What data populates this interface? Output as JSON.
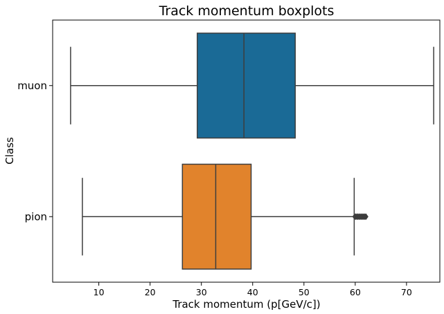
{
  "chart_data": {
    "type": "boxplot",
    "orientation": "horizontal",
    "title": "Track momentum boxplots",
    "xlabel": "Track momentum (p[GeV/c])",
    "ylabel": "Class",
    "xlim": [
      1,
      76.5
    ],
    "xticks": [
      10,
      20,
      30,
      40,
      50,
      60,
      70
    ],
    "grid": false,
    "categories": [
      "muon",
      "pion"
    ],
    "series": [
      {
        "category": "muon",
        "color": "#1a6a96",
        "whisker_low": 4.5,
        "q1": 29.2,
        "median": 38.3,
        "q3": 48.3,
        "whisker_high": 75.3,
        "outliers": []
      },
      {
        "category": "pion",
        "color": "#e1832c",
        "whisker_low": 6.8,
        "q1": 26.3,
        "median": 32.8,
        "q3": 39.7,
        "whisker_high": 59.8,
        "outliers": [
          59.9,
          60.1,
          60.3,
          60.5,
          60.7,
          60.9,
          61.1,
          61.3,
          61.5,
          61.7,
          61.9,
          62.1
        ]
      }
    ]
  }
}
